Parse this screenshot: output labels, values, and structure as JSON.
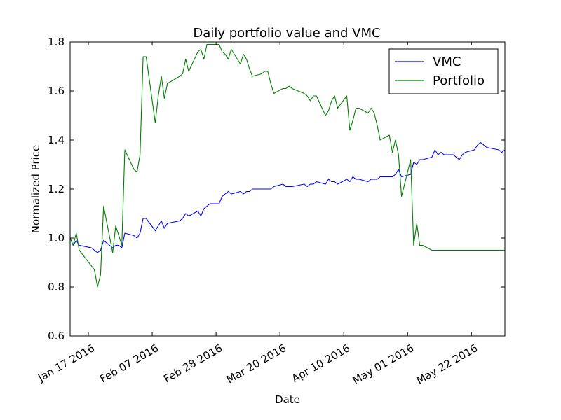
{
  "chart_data": {
    "type": "line",
    "title": "Daily portfolio value and VMC",
    "xlabel": "Date",
    "ylabel": "Normalized Price",
    "ylim": [
      0.6,
      1.8
    ],
    "yticks": [
      "0.6",
      "0.8",
      "1.0",
      "1.2",
      "1.4",
      "1.6",
      "1.8"
    ],
    "xlim": [
      "2016-01-11",
      "2016-06-02"
    ],
    "xticks": [
      {
        "date": "2016-01-17",
        "label": "Jan 17 2016"
      },
      {
        "date": "2016-02-07",
        "label": "Feb 07 2016"
      },
      {
        "date": "2016-02-28",
        "label": "Feb 28 2016"
      },
      {
        "date": "2016-03-20",
        "label": "Mar 20 2016"
      },
      {
        "date": "2016-04-10",
        "label": "Apr 10 2016"
      },
      {
        "date": "2016-05-01",
        "label": "May 01 2016"
      },
      {
        "date": "2016-05-22",
        "label": "May 22 2016"
      }
    ],
    "legend_position": "top-right",
    "grid": false,
    "series": [
      {
        "name": "VMC",
        "color": "#0000ff",
        "points": [
          [
            "2016-01-11",
            1.0
          ],
          [
            "2016-01-12",
            0.97
          ],
          [
            "2016-01-13",
            0.99
          ],
          [
            "2016-01-14",
            0.97
          ],
          [
            "2016-01-18",
            0.96
          ],
          [
            "2016-01-19",
            0.95
          ],
          [
            "2016-01-20",
            0.94
          ],
          [
            "2016-01-21",
            0.95
          ],
          [
            "2016-01-22",
            0.99
          ],
          [
            "2016-01-25",
            0.96
          ],
          [
            "2016-01-26",
            0.97
          ],
          [
            "2016-01-27",
            0.97
          ],
          [
            "2016-01-28",
            0.96
          ],
          [
            "2016-01-29",
            1.02
          ],
          [
            "2016-02-01",
            1.01
          ],
          [
            "2016-02-02",
            1.0
          ],
          [
            "2016-02-03",
            1.02
          ],
          [
            "2016-02-04",
            1.08
          ],
          [
            "2016-02-05",
            1.08
          ],
          [
            "2016-02-08",
            1.03
          ],
          [
            "2016-02-09",
            1.05
          ],
          [
            "2016-02-10",
            1.07
          ],
          [
            "2016-02-11",
            1.04
          ],
          [
            "2016-02-12",
            1.06
          ],
          [
            "2016-02-16",
            1.07
          ],
          [
            "2016-02-17",
            1.08
          ],
          [
            "2016-02-18",
            1.1
          ],
          [
            "2016-02-19",
            1.09
          ],
          [
            "2016-02-22",
            1.11
          ],
          [
            "2016-02-23",
            1.09
          ],
          [
            "2016-02-24",
            1.12
          ],
          [
            "2016-02-25",
            1.13
          ],
          [
            "2016-02-26",
            1.14
          ],
          [
            "2016-02-29",
            1.14
          ],
          [
            "2016-03-01",
            1.17
          ],
          [
            "2016-03-02",
            1.18
          ],
          [
            "2016-03-03",
            1.19
          ],
          [
            "2016-03-04",
            1.18
          ],
          [
            "2016-03-07",
            1.19
          ],
          [
            "2016-03-08",
            1.18
          ],
          [
            "2016-03-09",
            1.19
          ],
          [
            "2016-03-10",
            1.19
          ],
          [
            "2016-03-11",
            1.2
          ],
          [
            "2016-03-14",
            1.2
          ],
          [
            "2016-03-15",
            1.2
          ],
          [
            "2016-03-16",
            1.2
          ],
          [
            "2016-03-17",
            1.2
          ],
          [
            "2016-03-18",
            1.21
          ],
          [
            "2016-03-21",
            1.22
          ],
          [
            "2016-03-22",
            1.21
          ],
          [
            "2016-03-23",
            1.21
          ],
          [
            "2016-03-24",
            1.21
          ],
          [
            "2016-03-28",
            1.22
          ],
          [
            "2016-03-29",
            1.21
          ],
          [
            "2016-03-30",
            1.22
          ],
          [
            "2016-03-31",
            1.22
          ],
          [
            "2016-04-01",
            1.23
          ],
          [
            "2016-04-04",
            1.22
          ],
          [
            "2016-04-05",
            1.24
          ],
          [
            "2016-04-06",
            1.23
          ],
          [
            "2016-04-07",
            1.23
          ],
          [
            "2016-04-08",
            1.22
          ],
          [
            "2016-04-11",
            1.24
          ],
          [
            "2016-04-12",
            1.23
          ],
          [
            "2016-04-13",
            1.25
          ],
          [
            "2016-04-14",
            1.24
          ],
          [
            "2016-04-15",
            1.24
          ],
          [
            "2016-04-18",
            1.23
          ],
          [
            "2016-04-19",
            1.24
          ],
          [
            "2016-04-20",
            1.24
          ],
          [
            "2016-04-21",
            1.24
          ],
          [
            "2016-04-22",
            1.25
          ],
          [
            "2016-04-25",
            1.25
          ],
          [
            "2016-04-26",
            1.25
          ],
          [
            "2016-04-27",
            1.26
          ],
          [
            "2016-04-28",
            1.28
          ],
          [
            "2016-04-29",
            1.25
          ],
          [
            "2016-05-02",
            1.26
          ],
          [
            "2016-05-03",
            1.31
          ],
          [
            "2016-05-04",
            1.3
          ],
          [
            "2016-05-05",
            1.32
          ],
          [
            "2016-05-06",
            1.32
          ],
          [
            "2016-05-09",
            1.33
          ],
          [
            "2016-05-10",
            1.36
          ],
          [
            "2016-05-11",
            1.34
          ],
          [
            "2016-05-12",
            1.35
          ],
          [
            "2016-05-13",
            1.34
          ],
          [
            "2016-05-16",
            1.34
          ],
          [
            "2016-05-17",
            1.33
          ],
          [
            "2016-05-18",
            1.32
          ],
          [
            "2016-05-19",
            1.34
          ],
          [
            "2016-05-20",
            1.35
          ],
          [
            "2016-05-23",
            1.36
          ],
          [
            "2016-05-24",
            1.38
          ],
          [
            "2016-05-25",
            1.39
          ],
          [
            "2016-05-26",
            1.38
          ],
          [
            "2016-05-27",
            1.37
          ],
          [
            "2016-05-31",
            1.36
          ],
          [
            "2016-06-01",
            1.35
          ],
          [
            "2016-06-02",
            1.36
          ]
        ]
      },
      {
        "name": "Portfolio",
        "color": "#008000",
        "points": [
          [
            "2016-01-11",
            1.0
          ],
          [
            "2016-01-12",
            0.97
          ],
          [
            "2016-01-13",
            1.02
          ],
          [
            "2016-01-14",
            0.95
          ],
          [
            "2016-01-19",
            0.87
          ],
          [
            "2016-01-20",
            0.8
          ],
          [
            "2016-01-21",
            0.85
          ],
          [
            "2016-01-22",
            1.13
          ],
          [
            "2016-01-25",
            0.94
          ],
          [
            "2016-01-26",
            1.05
          ],
          [
            "2016-01-27",
            1.01
          ],
          [
            "2016-01-28",
            0.97
          ],
          [
            "2016-01-29",
            1.36
          ],
          [
            "2016-02-01",
            1.28
          ],
          [
            "2016-02-02",
            1.27
          ],
          [
            "2016-02-03",
            1.34
          ],
          [
            "2016-02-04",
            1.74
          ],
          [
            "2016-02-05",
            1.74
          ],
          [
            "2016-02-08",
            1.47
          ],
          [
            "2016-02-09",
            1.58
          ],
          [
            "2016-02-10",
            1.66
          ],
          [
            "2016-02-11",
            1.57
          ],
          [
            "2016-02-12",
            1.63
          ],
          [
            "2016-02-16",
            1.66
          ],
          [
            "2016-02-17",
            1.67
          ],
          [
            "2016-02-18",
            1.73
          ],
          [
            "2016-02-19",
            1.68
          ],
          [
            "2016-02-22",
            1.76
          ],
          [
            "2016-02-23",
            1.77
          ],
          [
            "2016-02-24",
            1.73
          ],
          [
            "2016-02-25",
            1.79
          ],
          [
            "2016-02-26",
            1.79
          ],
          [
            "2016-02-29",
            1.79
          ],
          [
            "2016-03-01",
            1.76
          ],
          [
            "2016-03-02",
            1.75
          ],
          [
            "2016-03-03",
            1.73
          ],
          [
            "2016-03-04",
            1.77
          ],
          [
            "2016-03-07",
            1.71
          ],
          [
            "2016-03-08",
            1.75
          ],
          [
            "2016-03-09",
            1.73
          ],
          [
            "2016-03-10",
            1.69
          ],
          [
            "2016-03-11",
            1.66
          ],
          [
            "2016-03-14",
            1.67
          ],
          [
            "2016-03-15",
            1.68
          ],
          [
            "2016-03-16",
            1.68
          ],
          [
            "2016-03-17",
            1.63
          ],
          [
            "2016-03-18",
            1.59
          ],
          [
            "2016-03-21",
            1.61
          ],
          [
            "2016-03-22",
            1.61
          ],
          [
            "2016-03-23",
            1.62
          ],
          [
            "2016-03-24",
            1.61
          ],
          [
            "2016-03-28",
            1.59
          ],
          [
            "2016-03-29",
            1.58
          ],
          [
            "2016-03-30",
            1.56
          ],
          [
            "2016-03-31",
            1.58
          ],
          [
            "2016-04-01",
            1.58
          ],
          [
            "2016-04-04",
            1.5
          ],
          [
            "2016-04-05",
            1.52
          ],
          [
            "2016-04-06",
            1.56
          ],
          [
            "2016-04-07",
            1.58
          ],
          [
            "2016-04-08",
            1.53
          ],
          [
            "2016-04-11",
            1.58
          ],
          [
            "2016-04-12",
            1.44
          ],
          [
            "2016-04-13",
            1.48
          ],
          [
            "2016-04-14",
            1.53
          ],
          [
            "2016-04-15",
            1.53
          ],
          [
            "2016-04-18",
            1.51
          ],
          [
            "2016-04-19",
            1.53
          ],
          [
            "2016-04-20",
            1.51
          ],
          [
            "2016-04-21",
            1.46
          ],
          [
            "2016-04-22",
            1.4
          ],
          [
            "2016-04-25",
            1.42
          ],
          [
            "2016-04-26",
            1.35
          ],
          [
            "2016-04-27",
            1.4
          ],
          [
            "2016-04-28",
            1.34
          ],
          [
            "2016-04-29",
            1.17
          ],
          [
            "2016-05-02",
            1.32
          ],
          [
            "2016-05-03",
            0.97
          ],
          [
            "2016-05-04",
            1.06
          ],
          [
            "2016-05-05",
            0.97
          ],
          [
            "2016-05-06",
            0.97
          ],
          [
            "2016-05-09",
            0.95
          ],
          [
            "2016-05-10",
            0.95
          ],
          [
            "2016-05-11",
            0.95
          ],
          [
            "2016-05-16",
            0.95
          ],
          [
            "2016-05-23",
            0.95
          ],
          [
            "2016-05-31",
            0.95
          ],
          [
            "2016-06-02",
            0.95
          ]
        ]
      }
    ]
  }
}
